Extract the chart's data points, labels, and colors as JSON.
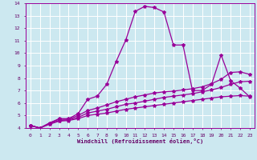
{
  "background_color": "#cce8f0",
  "grid_color": "#ffffff",
  "line_color": "#990099",
  "xlabel": "Windchill (Refroidissement éolien,°C)",
  "xlabel_color": "#660066",
  "tick_color": "#660066",
  "xlim": [
    -0.5,
    23.5
  ],
  "ylim": [
    4,
    14
  ],
  "xticks": [
    0,
    1,
    2,
    3,
    4,
    5,
    6,
    7,
    8,
    9,
    10,
    11,
    12,
    13,
    14,
    15,
    16,
    17,
    18,
    19,
    20,
    21,
    22,
    23
  ],
  "yticks": [
    4,
    5,
    6,
    7,
    8,
    9,
    10,
    11,
    12,
    13,
    14
  ],
  "curve1_x": [
    0,
    1,
    2,
    3,
    4,
    5,
    6,
    7,
    8,
    9,
    10,
    11,
    12,
    13,
    14,
    15,
    16,
    17,
    18,
    19,
    20,
    21,
    22,
    23
  ],
  "curve1_y": [
    4.2,
    4.0,
    4.4,
    4.75,
    4.75,
    5.15,
    6.3,
    6.55,
    7.5,
    9.35,
    11.05,
    13.35,
    13.75,
    13.65,
    13.3,
    10.65,
    10.65,
    7.0,
    7.0,
    7.5,
    9.85,
    7.8,
    7.2,
    6.5
  ],
  "curve2_x": [
    0,
    1,
    2,
    3,
    4,
    5,
    6,
    7,
    8,
    9,
    10,
    11,
    12,
    13,
    14,
    15,
    16,
    17,
    18,
    19,
    20,
    21,
    22,
    23
  ],
  "curve2_y": [
    4.2,
    4.0,
    4.3,
    4.55,
    4.6,
    4.75,
    5.0,
    5.1,
    5.2,
    5.35,
    5.5,
    5.6,
    5.7,
    5.8,
    5.9,
    6.0,
    6.1,
    6.2,
    6.3,
    6.4,
    6.5,
    6.55,
    6.6,
    6.55
  ],
  "curve3_x": [
    0,
    1,
    2,
    3,
    4,
    5,
    6,
    7,
    8,
    9,
    10,
    11,
    12,
    13,
    14,
    15,
    16,
    17,
    18,
    19,
    20,
    21,
    22,
    23
  ],
  "curve3_y": [
    4.2,
    4.0,
    4.35,
    4.6,
    4.65,
    4.85,
    5.2,
    5.35,
    5.5,
    5.7,
    5.9,
    6.0,
    6.15,
    6.3,
    6.45,
    6.55,
    6.65,
    6.75,
    6.9,
    7.05,
    7.25,
    7.5,
    7.7,
    7.75
  ],
  "curve4_x": [
    0,
    1,
    2,
    3,
    4,
    5,
    6,
    7,
    8,
    9,
    10,
    11,
    12,
    13,
    14,
    15,
    16,
    17,
    18,
    19,
    20,
    21,
    22,
    23
  ],
  "curve4_y": [
    4.2,
    4.0,
    4.4,
    4.7,
    4.7,
    5.0,
    5.4,
    5.6,
    5.85,
    6.1,
    6.3,
    6.5,
    6.65,
    6.8,
    6.9,
    6.95,
    7.05,
    7.15,
    7.3,
    7.55,
    7.9,
    8.45,
    8.5,
    8.3
  ]
}
